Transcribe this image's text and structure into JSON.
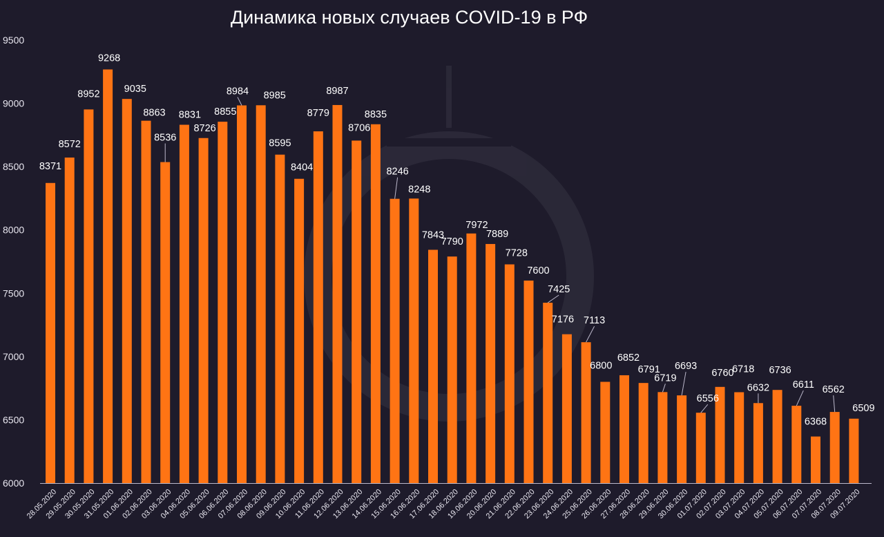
{
  "chart_data": {
    "type": "bar",
    "title": "Динамика новых случаев COVID-19 в РФ",
    "xlabel": "",
    "ylabel": "",
    "ylim": [
      6000,
      9500
    ],
    "yticks": [
      6000,
      6500,
      7000,
      7500,
      8000,
      8500,
      9000,
      9500
    ],
    "grid": false,
    "bar_color": "#ff7414",
    "categories": [
      "28.05.2020",
      "29.05.2020",
      "30.05.2020",
      "31.05.2020",
      "01.06.2020",
      "02.06.2020",
      "03.06.2020",
      "04.06.2020",
      "05.06.2020",
      "06.06.2020",
      "07.06.2020",
      "08.06.2020",
      "09.06.2020",
      "10.06.2020",
      "11.06.2020",
      "12.06.2020",
      "13.06.2020",
      "14.06.2020",
      "15.06.2020",
      "16.06.2020",
      "17.06.2020",
      "18.06.2020",
      "19.06.2020",
      "20.06.2020",
      "21.06.2020",
      "22.06.2020",
      "23.06.2020",
      "24.06.2020",
      "25.06.2020",
      "26.06.2020",
      "27.06.2020",
      "28.06.2020",
      "29.06.2020",
      "30.06.2020",
      "01.07.2020",
      "02.07.2020",
      "03.07.2020",
      "04.07.2020",
      "05.07.2020",
      "06.07.2020",
      "07.07.2020",
      "08.07.2020",
      "09.07.2020"
    ],
    "values": [
      8371,
      8572,
      8952,
      9268,
      9035,
      8863,
      8536,
      8831,
      8726,
      8855,
      8984,
      8985,
      8595,
      8404,
      8779,
      8987,
      8706,
      8835,
      8246,
      8248,
      7843,
      7790,
      7972,
      7889,
      7728,
      7600,
      7425,
      7176,
      7113,
      6800,
      6852,
      6791,
      6719,
      6693,
      6556,
      6760,
      6718,
      6632,
      6736,
      6611,
      6368,
      6562,
      6509
    ]
  }
}
